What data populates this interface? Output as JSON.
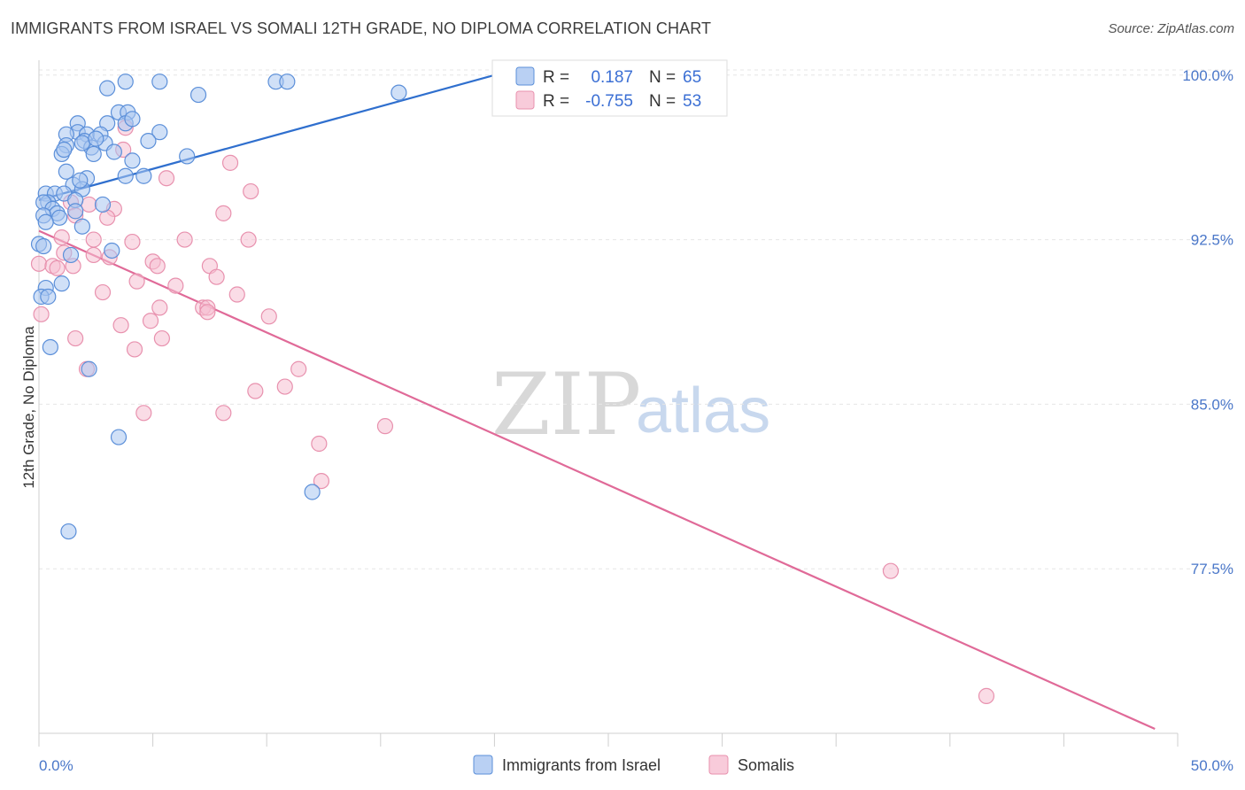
{
  "title": "IMMIGRANTS FROM ISRAEL VS SOMALI 12TH GRADE, NO DIPLOMA CORRELATION CHART",
  "source": "Source: ZipAtlas.com",
  "watermark": {
    "zip": "ZIP",
    "atlas": "atlas"
  },
  "legend_top": {
    "rows": [
      {
        "r_label": "R =",
        "r_value": "0.187",
        "n_label": "N =",
        "n_value": "65"
      },
      {
        "r_label": "R =",
        "r_value": "-0.755",
        "n_label": "N =",
        "n_value": "53"
      }
    ]
  },
  "colors": {
    "israel_fill": "#a9c6f0",
    "israel_stroke": "#5b8fd9",
    "israel_line": "#2f6fce",
    "somali_fill": "#f6c0d2",
    "somali_stroke": "#e891ae",
    "somali_line": "#e06a98",
    "grid": "#e6e6e6",
    "axis_text": "#4a77c9"
  },
  "chart_data": {
    "type": "scatter",
    "title": "IMMIGRANTS FROM ISRAEL VS SOMALI 12TH GRADE, NO DIPLOMA CORRELATION CHART",
    "xlabel": "",
    "ylabel": "12th Grade, No Diploma",
    "xlim": [
      0,
      50
    ],
    "ylim": [
      70.0,
      101.0
    ],
    "x_tick_labels": [
      "0.0%",
      "50.0%"
    ],
    "y_ticks": [
      77.5,
      85.0,
      92.5,
      100.0
    ],
    "y_tick_labels": [
      "77.5%",
      "85.0%",
      "92.5%",
      "100.0%"
    ],
    "grid": true,
    "legend_placement": "top-center",
    "series": [
      {
        "name": "Immigrants from Israel",
        "r": 0.187,
        "n": 65,
        "trend": {
          "x": [
            0,
            20
          ],
          "y": [
            94.3,
            100.0
          ]
        },
        "points": [
          [
            3.8,
            99.7
          ],
          [
            5.3,
            99.7
          ],
          [
            10.4,
            99.7
          ],
          [
            10.9,
            99.7
          ],
          [
            3.0,
            99.4
          ],
          [
            7.0,
            99.1
          ],
          [
            15.8,
            99.2
          ],
          [
            3.5,
            98.3
          ],
          [
            3.9,
            98.3
          ],
          [
            1.7,
            97.8
          ],
          [
            3.0,
            97.8
          ],
          [
            3.8,
            97.8
          ],
          [
            4.1,
            98.0
          ],
          [
            1.7,
            97.4
          ],
          [
            1.2,
            97.3
          ],
          [
            2.1,
            97.3
          ],
          [
            2.7,
            97.3
          ],
          [
            5.3,
            97.4
          ],
          [
            2.0,
            97.0
          ],
          [
            2.9,
            96.9
          ],
          [
            2.3,
            96.7
          ],
          [
            1.9,
            96.9
          ],
          [
            1.2,
            96.8
          ],
          [
            4.8,
            97.0
          ],
          [
            1.0,
            96.4
          ],
          [
            1.1,
            96.6
          ],
          [
            3.3,
            96.5
          ],
          [
            2.4,
            96.4
          ],
          [
            6.5,
            96.3
          ],
          [
            4.1,
            96.1
          ],
          [
            1.2,
            95.6
          ],
          [
            2.1,
            95.3
          ],
          [
            3.8,
            95.4
          ],
          [
            4.6,
            95.4
          ],
          [
            1.5,
            95.0
          ],
          [
            1.9,
            94.8
          ],
          [
            0.3,
            94.6
          ],
          [
            0.7,
            94.6
          ],
          [
            1.1,
            94.6
          ],
          [
            0.4,
            94.2
          ],
          [
            1.6,
            94.3
          ],
          [
            2.8,
            94.1
          ],
          [
            0.2,
            94.2
          ],
          [
            0.6,
            93.9
          ],
          [
            0.8,
            93.7
          ],
          [
            1.6,
            93.8
          ],
          [
            0.2,
            93.6
          ],
          [
            0.9,
            93.5
          ],
          [
            0.3,
            93.3
          ],
          [
            1.9,
            93.1
          ],
          [
            0.0,
            92.3
          ],
          [
            0.2,
            92.2
          ],
          [
            1.4,
            91.8
          ],
          [
            3.2,
            92.0
          ],
          [
            1.0,
            90.5
          ],
          [
            0.3,
            90.3
          ],
          [
            0.1,
            89.9
          ],
          [
            0.4,
            89.9
          ],
          [
            0.5,
            87.6
          ],
          [
            2.2,
            86.6
          ],
          [
            3.5,
            83.5
          ],
          [
            12.0,
            81.0
          ],
          [
            1.3,
            79.2
          ],
          [
            1.8,
            95.2
          ],
          [
            2.5,
            97.1
          ]
        ]
      },
      {
        "name": "Somalis",
        "r": -0.755,
        "n": 53,
        "trend": {
          "x": [
            0,
            49.0
          ],
          "y": [
            92.9,
            70.2
          ]
        },
        "points": [
          [
            3.8,
            97.6
          ],
          [
            3.7,
            96.6
          ],
          [
            8.4,
            96.0
          ],
          [
            5.6,
            95.3
          ],
          [
            9.3,
            94.7
          ],
          [
            1.4,
            94.2
          ],
          [
            2.2,
            94.1
          ],
          [
            3.3,
            93.9
          ],
          [
            8.1,
            93.7
          ],
          [
            3.0,
            93.5
          ],
          [
            1.0,
            92.6
          ],
          [
            2.4,
            92.5
          ],
          [
            4.1,
            92.4
          ],
          [
            6.4,
            92.5
          ],
          [
            9.2,
            92.5
          ],
          [
            1.1,
            91.9
          ],
          [
            2.4,
            91.8
          ],
          [
            3.1,
            91.7
          ],
          [
            0.0,
            91.4
          ],
          [
            0.6,
            91.3
          ],
          [
            1.5,
            91.3
          ],
          [
            5.0,
            91.5
          ],
          [
            5.2,
            91.3
          ],
          [
            7.5,
            91.3
          ],
          [
            7.8,
            90.8
          ],
          [
            4.3,
            90.6
          ],
          [
            6.0,
            90.4
          ],
          [
            2.8,
            90.1
          ],
          [
            8.7,
            90.0
          ],
          [
            5.3,
            89.4
          ],
          [
            7.2,
            89.4
          ],
          [
            7.4,
            89.4
          ],
          [
            0.1,
            89.1
          ],
          [
            7.4,
            89.2
          ],
          [
            10.1,
            89.0
          ],
          [
            4.9,
            88.8
          ],
          [
            3.6,
            88.6
          ],
          [
            1.6,
            88.0
          ],
          [
            5.4,
            88.0
          ],
          [
            4.2,
            87.5
          ],
          [
            2.1,
            86.6
          ],
          [
            11.4,
            86.6
          ],
          [
            10.8,
            85.8
          ],
          [
            9.5,
            85.6
          ],
          [
            4.6,
            84.6
          ],
          [
            8.1,
            84.6
          ],
          [
            15.2,
            84.0
          ],
          [
            12.3,
            83.2
          ],
          [
            12.4,
            81.5
          ],
          [
            37.4,
            77.4
          ],
          [
            41.6,
            71.7
          ],
          [
            1.6,
            93.6
          ],
          [
            0.8,
            91.2
          ]
        ]
      }
    ]
  },
  "bottom_legend": [
    "Immigrants from Israel",
    "Somalis"
  ]
}
